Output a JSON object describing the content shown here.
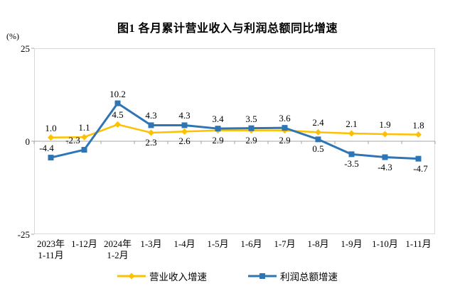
{
  "title": "图1 各月累计营业收入与利润总额同比增速",
  "chart_data": {
    "type": "line",
    "title": "图1 各月累计营业收入与利润总额同比增速",
    "ylabel": "(%)",
    "ylim": [
      -25,
      25
    ],
    "y_tick_labels": [
      "25",
      "0",
      "-25"
    ],
    "grid": false,
    "legend_position": "bottom",
    "axis_color": "#A6A6A6",
    "border_color": "#D9D9D9",
    "categories": [
      "2023年\n1-11月",
      "1-12月",
      "2024年\n1-2月",
      "1-3月",
      "1-4月",
      "1-5月",
      "1-6月",
      "1-7月",
      "1-8月",
      "1-9月",
      "1-10月",
      "1-11月"
    ],
    "series": [
      {
        "name": "营业收入增速",
        "color": "#FFC000",
        "marker": "diamond",
        "values": [
          1.0,
          1.1,
          4.5,
          2.3,
          2.6,
          2.9,
          2.9,
          2.9,
          2.4,
          2.1,
          1.9,
          1.8
        ],
        "labels": [
          "1.0",
          "1.1",
          "4.5",
          "2.3",
          "2.6",
          "2.9",
          "2.9",
          "2.9",
          "2.4",
          "2.1",
          "1.9",
          "1.8"
        ],
        "label_side": [
          "above",
          "above",
          "above",
          "below",
          "below",
          "below",
          "below",
          "below",
          "above",
          "above",
          "above",
          "above"
        ],
        "label_dx": [
          0,
          0,
          0,
          0,
          0,
          0,
          0,
          0,
          0,
          0,
          0,
          0
        ]
      },
      {
        "name": "利润总额增速",
        "color": "#2E75B6",
        "marker": "square",
        "values": [
          -4.4,
          -2.3,
          10.2,
          4.3,
          4.3,
          3.4,
          3.5,
          3.6,
          0.5,
          -3.5,
          -4.3,
          -4.7
        ],
        "labels": [
          "-4.4",
          "-2.3",
          "10.2",
          "4.3",
          "4.3",
          "3.4",
          "3.5",
          "3.6",
          "0.5",
          "-3.5",
          "-4.3",
          "-4.7"
        ],
        "label_side": [
          "above",
          "above",
          "above",
          "above",
          "above",
          "above",
          "above",
          "above",
          "below",
          "below",
          "below",
          "below"
        ],
        "label_dx": [
          -6,
          -16,
          0,
          0,
          0,
          0,
          0,
          0,
          0,
          0,
          0,
          3
        ]
      }
    ]
  }
}
